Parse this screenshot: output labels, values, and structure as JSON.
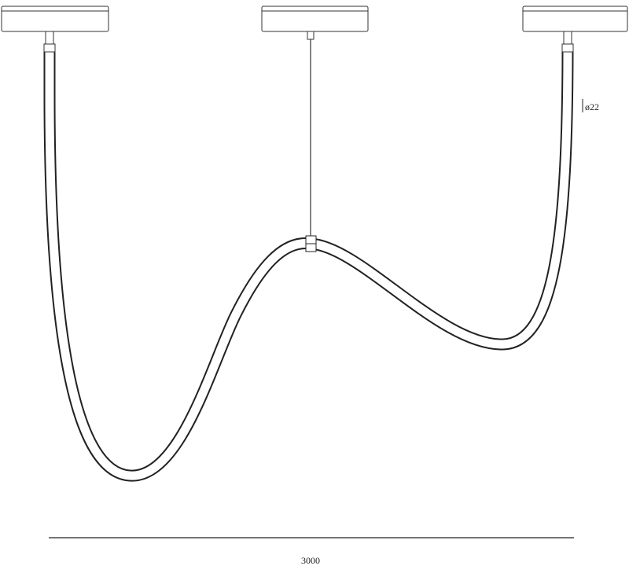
{
  "dimensions": {
    "diameter": "ø22",
    "width": "3000"
  }
}
